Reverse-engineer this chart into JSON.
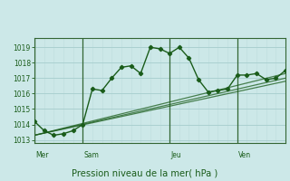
{
  "background_color": "#cce8e8",
  "grid_color_major": "#aad0d0",
  "grid_color_minor": "#c0dede",
  "line_color": "#1a5c1a",
  "separator_color": "#336633",
  "title": "Pression niveau de la mer( hPa )",
  "ylim": [
    1012.8,
    1019.6
  ],
  "yticks": [
    1013,
    1014,
    1015,
    1016,
    1017,
    1018,
    1019
  ],
  "day_labels": [
    "Mer",
    "Sam",
    "Jeu",
    "Ven"
  ],
  "day_positions": [
    0,
    5,
    14,
    21
  ],
  "main_x": [
    0,
    1,
    2,
    3,
    4,
    5,
    6,
    7,
    8,
    9,
    10,
    11,
    12,
    13,
    14,
    15,
    16,
    17,
    18,
    19,
    20,
    21,
    22,
    23,
    24,
    25,
    26
  ],
  "main_y": [
    1014.2,
    1013.6,
    1013.3,
    1013.4,
    1013.6,
    1014.0,
    1016.3,
    1016.2,
    1017.0,
    1017.7,
    1017.8,
    1017.3,
    1019.0,
    1018.9,
    1018.6,
    1019.0,
    1018.3,
    1016.9,
    1016.1,
    1016.2,
    1016.3,
    1017.2,
    1017.2,
    1017.3,
    1016.9,
    1017.0,
    1017.5
  ],
  "line1_x": [
    0,
    26
  ],
  "line1_y": [
    1013.3,
    1017.0
  ],
  "line2_x": [
    0,
    26
  ],
  "line2_y": [
    1013.3,
    1016.8
  ],
  "line3_x": [
    0,
    26
  ],
  "line3_y": [
    1013.3,
    1017.3
  ],
  "xlim": [
    0,
    26
  ],
  "n_x_gridlines": 26
}
